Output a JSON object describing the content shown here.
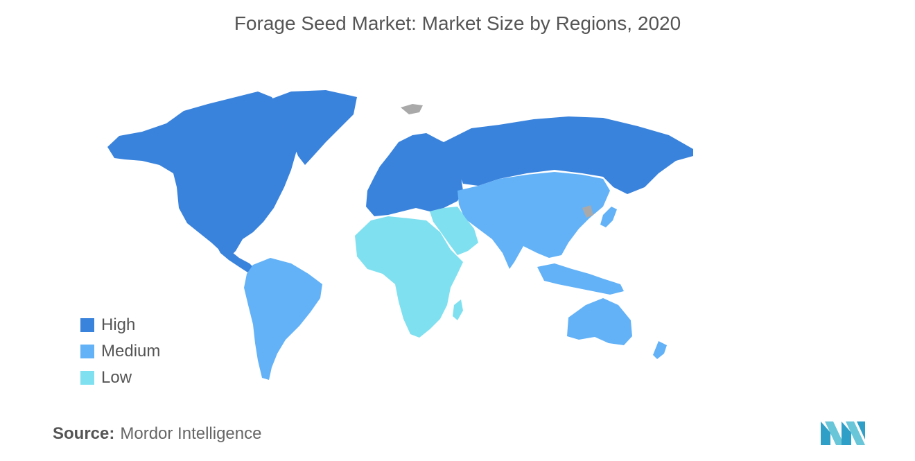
{
  "title": "Forage Seed Market: Market Size by Regions, 2020",
  "legend": [
    {
      "label": "High",
      "color": "#3a83dc"
    },
    {
      "label": "Medium",
      "color": "#63b2f7"
    },
    {
      "label": "Low",
      "color": "#7fe0f0"
    }
  ],
  "no_data_color": "#a9a9a9",
  "regions": [
    {
      "name": "North America",
      "level": "High"
    },
    {
      "name": "Europe",
      "level": "High"
    },
    {
      "name": "Russia",
      "level": "High"
    },
    {
      "name": "South America",
      "level": "Medium"
    },
    {
      "name": "Asia-Pacific",
      "level": "Medium"
    },
    {
      "name": "Africa",
      "level": "Low"
    },
    {
      "name": "Middle East",
      "level": "Low"
    }
  ],
  "source": {
    "label": "Source:",
    "value": "Mordor Intelligence"
  }
}
